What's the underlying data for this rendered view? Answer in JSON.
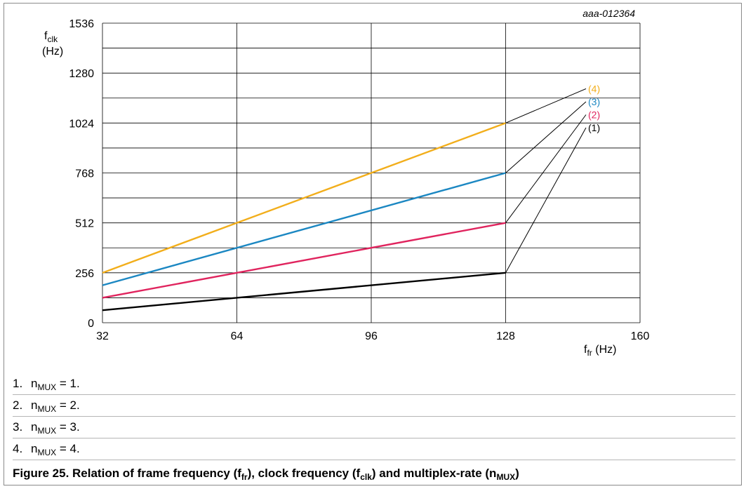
{
  "chart_data": {
    "type": "line",
    "id_label": "aaa-012364",
    "ylabel": {
      "main": "f",
      "sub": "clk",
      "unit": "(Hz)"
    },
    "xlabel": {
      "main": "f",
      "sub": "fr",
      "unit": "(Hz)"
    },
    "xlim": [
      32,
      160
    ],
    "ylim": [
      0,
      1536
    ],
    "xticks": [
      32,
      64,
      96,
      128,
      160
    ],
    "yticks": [
      0,
      256,
      512,
      768,
      1024,
      1280,
      1536
    ],
    "grid": true,
    "series": [
      {
        "name": "(1)",
        "color": "#000000",
        "x": [
          32,
          128
        ],
        "y": [
          64,
          256
        ]
      },
      {
        "name": "(2)",
        "color": "#e0245e",
        "x": [
          32,
          128
        ],
        "y": [
          128,
          512
        ]
      },
      {
        "name": "(3)",
        "color": "#1b87c2",
        "x": [
          32,
          128
        ],
        "y": [
          192,
          768
        ]
      },
      {
        "name": "(4)",
        "color": "#f2ae1b",
        "x": [
          32,
          128
        ],
        "y": [
          256,
          1024
        ]
      }
    ]
  },
  "notes": [
    {
      "num": "1.",
      "pre": "n",
      "sub": "MUX",
      "post": " = 1."
    },
    {
      "num": "2.",
      "pre": "n",
      "sub": "MUX",
      "post": " = 2."
    },
    {
      "num": "3.",
      "pre": "n",
      "sub": "MUX",
      "post": " = 3."
    },
    {
      "num": "4.",
      "pre": "n",
      "sub": "MUX",
      "post": " = 4."
    }
  ],
  "caption": {
    "t1": "Figure 25.  Relation of frame frequency (f",
    "s1": "fr",
    "t2": "), clock frequency (f",
    "s2": "clk",
    "t3": ") and multiplex-rate (n",
    "s3": "MUX",
    "t4": ")"
  }
}
